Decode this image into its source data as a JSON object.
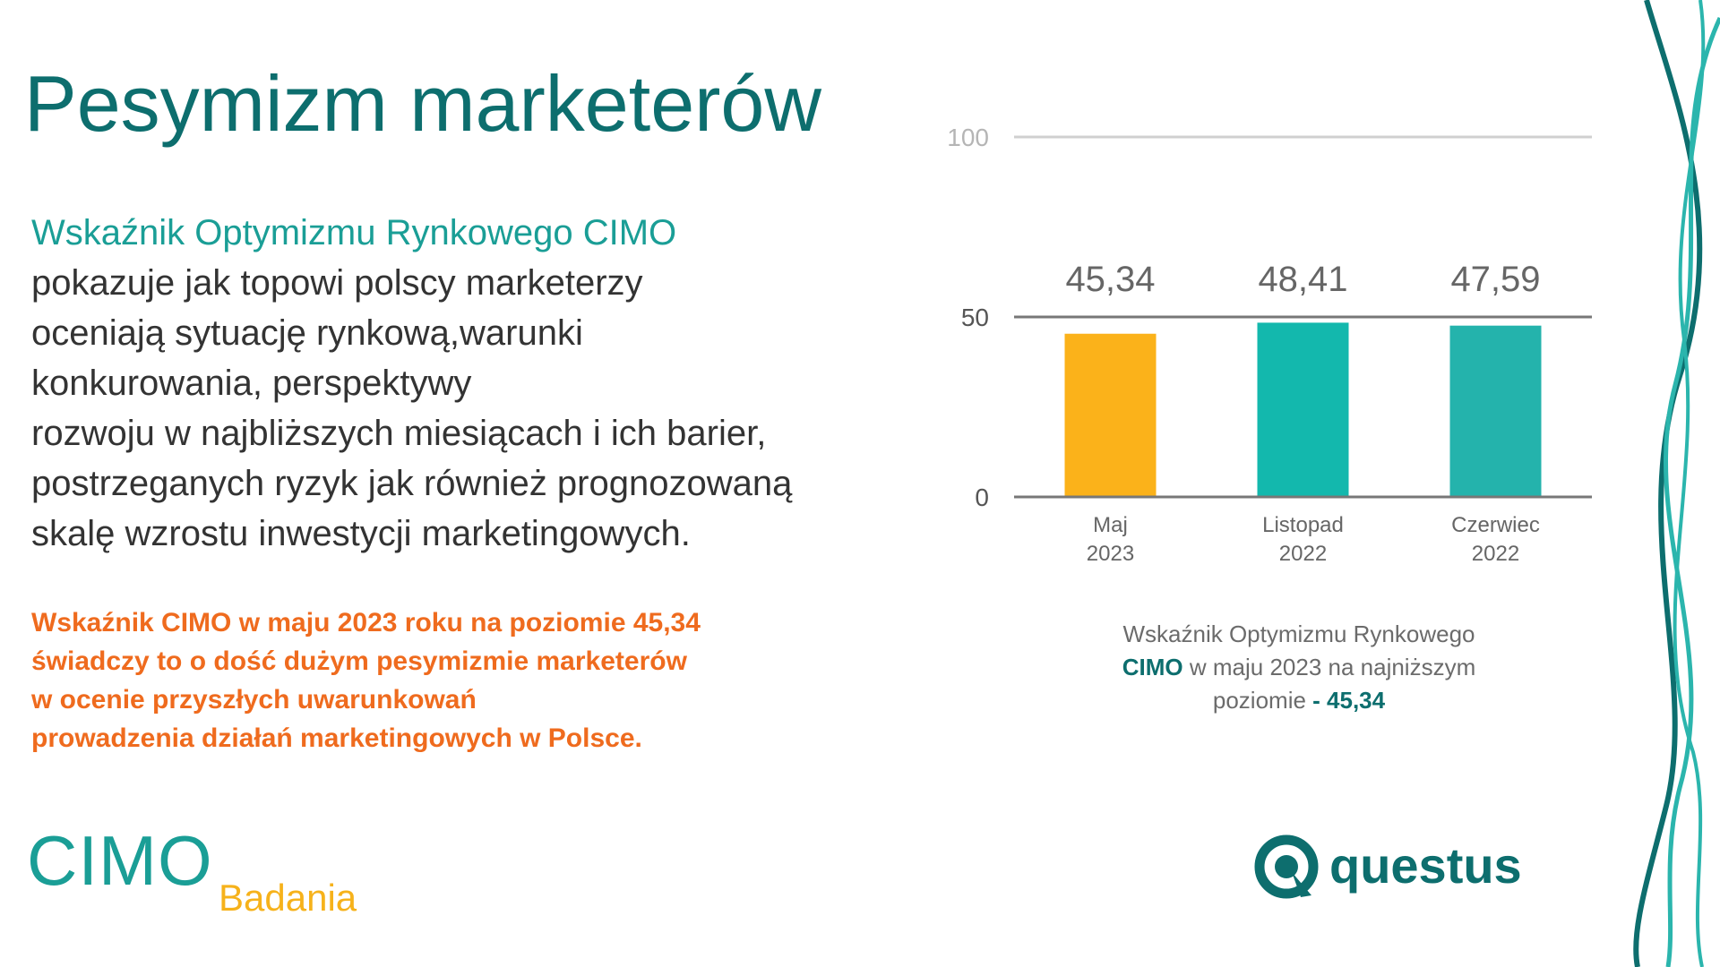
{
  "title": "Pesymizm marketerów",
  "intro": {
    "lead": "Wskaźnik Optymizmu Rynkowego CIMO",
    "lines": [
      "pokazuje jak topowi polscy marketerzy",
      "oceniają sytuację rynkową,warunki",
      "konkurowania, perspektywy",
      "rozwoju w najbliższych miesiącach i ich barier,",
      "postrzeganych ryzyk jak również prognozowaną",
      "skalę wzrostu inwestycji marketingowych."
    ]
  },
  "note": {
    "lines": [
      "Wskaźnik CIMO w maju 2023 roku na poziomie 45,34",
      "świadczy to o dość dużym pesymizmie marketerów",
      "w ocenie przyszłych uwarunkowań",
      "prowadzenia działań marketingowych w Polsce."
    ]
  },
  "chart_data": {
    "type": "bar",
    "categories": [
      [
        "Maj",
        "2023"
      ],
      [
        "Listopad",
        "2022"
      ],
      [
        "Czerwiec",
        "2022"
      ]
    ],
    "values": [
      45.34,
      48.41,
      47.59
    ],
    "value_labels": [
      "45,34",
      "48,41",
      "47,59"
    ],
    "bar_colors": [
      "#fbb21a",
      "#13b8ad",
      "#24b3ac"
    ],
    "yticks": [
      0,
      50,
      100
    ],
    "ylim": [
      0,
      100
    ],
    "grid": true
  },
  "caption": {
    "part1": "Wskaźnik Optymizmu Rynkowego",
    "highlight1": "CIMO",
    "part2": " w maju 2023 na najniższym",
    "part3": "poziomie ",
    "highlight2": "- 45,34"
  },
  "logo_cimo": {
    "main": "CIMO",
    "sub": "Badania"
  },
  "logo_questus": {
    "text": "questus",
    "icon": "questus-q-icon"
  },
  "colors": {
    "title": "#0d6e6e",
    "teal": "#1a9e96",
    "orange": "#ef6b1e",
    "gold": "#f6b21b",
    "text": "#333333"
  }
}
